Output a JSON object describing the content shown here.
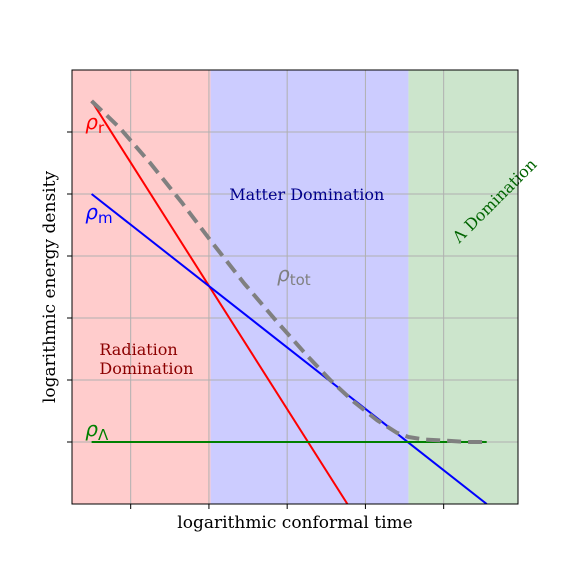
{
  "chart_data": {
    "type": "line",
    "xlabel": "logarithmic conformal time",
    "ylabel": "logarithmic energy density",
    "xlim": [
      0,
      5.7
    ],
    "ylim": [
      0,
      7
    ],
    "grid": true,
    "x_ticks": [
      0.75,
      1.75,
      2.75,
      3.75,
      4.75
    ],
    "y_ticks": [
      1,
      2,
      3,
      4,
      5,
      6
    ],
    "regions": [
      {
        "name": "radiation",
        "x_start": 0,
        "x_end": 1.77,
        "color": "#ffcccc",
        "label_lines": [
          "Radiation",
          "Domination"
        ],
        "label_color": "#8b0000",
        "label_x": 0.35,
        "label_y": 2.4
      },
      {
        "name": "matter",
        "x_start": 1.77,
        "x_end": 4.3,
        "color": "#ccccff",
        "label_lines": [
          "Matter Domination"
        ],
        "label_color": "#00008b",
        "label_x": 3.0,
        "label_y": 4.9
      },
      {
        "name": "lambda",
        "x_start": 4.3,
        "x_end": 5.7,
        "color": "#cce5cc",
        "label_lines": [
          "Λ Domination"
        ],
        "label_color": "#006400",
        "label_x": 4.95,
        "label_y": 4.2,
        "rotate": -45
      }
    ],
    "series": [
      {
        "key": "rho_r",
        "sym": "ρ",
        "sub": "r",
        "color": "#ff0000",
        "dash": false,
        "width": 2,
        "x": [
          0.25,
          3.52
        ],
        "y": [
          6.5,
          0.0
        ],
        "label_x": 0.17,
        "label_y": 6.05
      },
      {
        "key": "rho_m",
        "sym": "ρ",
        "sub": "m",
        "color": "#0000ff",
        "dash": false,
        "width": 2,
        "x": [
          0.25,
          5.3
        ],
        "y": [
          5.0,
          0.0
        ],
        "label_x": 0.17,
        "label_y": 4.6
      },
      {
        "key": "rho_lambda",
        "sym": "ρ",
        "sub": "Λ",
        "color": "#008000",
        "dash": false,
        "width": 2,
        "x": [
          0.25,
          5.3
        ],
        "y": [
          1.0,
          1.0
        ],
        "label_x": 0.17,
        "label_y": 1.1
      },
      {
        "key": "rho_tot",
        "sym": "ρ",
        "sub": "tot",
        "color": "#808080",
        "dash": true,
        "width": 4,
        "x": [
          0.25,
          0.6,
          1.0,
          1.4,
          1.77,
          2.2,
          2.6,
          3.0,
          3.3,
          3.6,
          3.9,
          4.15,
          4.3,
          4.5,
          4.8,
          5.05,
          5.3
        ],
        "y": [
          6.5,
          6.08,
          5.5,
          4.87,
          4.25,
          3.56,
          2.97,
          2.4,
          2.0,
          1.65,
          1.35,
          1.15,
          1.08,
          1.04,
          1.02,
          1.0,
          1.0
        ],
        "label_x": 2.62,
        "label_y": 3.6
      }
    ]
  }
}
